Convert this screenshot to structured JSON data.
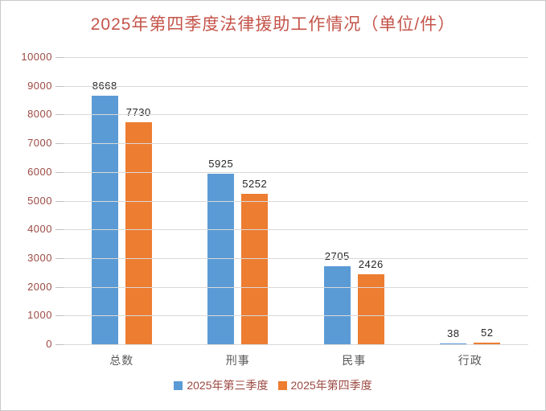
{
  "page": {
    "background": "#ffffff",
    "border_color": "#c9c9c9"
  },
  "chart_data": {
    "type": "bar",
    "title": "2025年第四季度法律援助工作情况（单位/件）",
    "categories": [
      "总数",
      "刑事",
      "民事",
      "行政"
    ],
    "series": [
      {
        "name": "2025年第三季度",
        "color": "#5b9bd5",
        "values": [
          8668,
          5925,
          2705,
          38
        ]
      },
      {
        "name": "2025年第四季度",
        "color": "#ed7d31",
        "values": [
          7730,
          5252,
          2426,
          52
        ]
      }
    ],
    "ylim": [
      0,
      10000
    ],
    "y_step": 1000,
    "grid": true,
    "legend_position": "bottom",
    "colors": {
      "title_text": "#c4544a",
      "y_axis_text": "#9c4a43",
      "legend_text": "#9c4a43",
      "category_text": "#595959",
      "data_label_text": "#262626",
      "gridline": "#d9d9d9",
      "tick_mark": "#c0c0c0"
    }
  }
}
